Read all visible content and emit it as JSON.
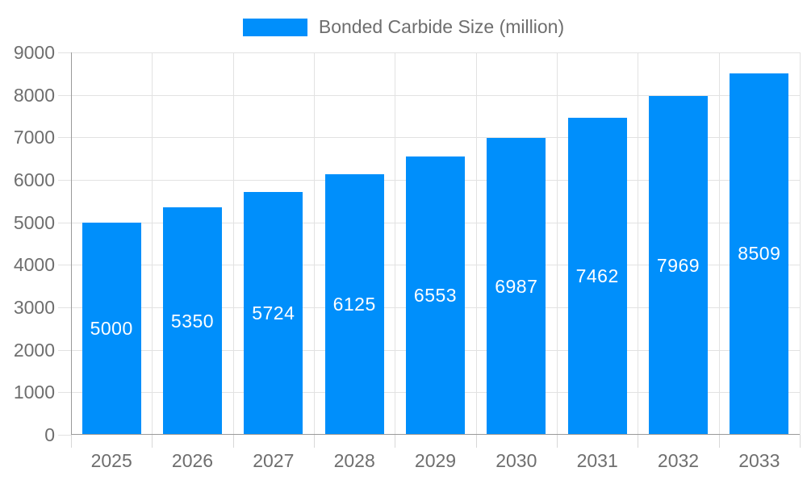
{
  "legend": {
    "label": "Bonded Carbide Size (million)"
  },
  "chart_data": {
    "type": "bar",
    "title": "Bonded Carbide Size (million)",
    "series": [
      {
        "name": "Bonded Carbide Size (million)",
        "values": [
          5000,
          5350,
          5724,
          6125,
          6553,
          6987,
          7462,
          7969,
          8509
        ]
      }
    ],
    "categories": [
      "2025",
      "2026",
      "2027",
      "2028",
      "2029",
      "2030",
      "2031",
      "2032",
      "2033"
    ],
    "value_labels": [
      "5000",
      "5350",
      "5724",
      "6125",
      "6553",
      "6987",
      "7462",
      "7969",
      "8509"
    ],
    "xlabel": "",
    "ylabel": "",
    "ylim": [
      0,
      9000
    ],
    "ytick_step": 1000,
    "ytick_labels": [
      "0",
      "1000",
      "2000",
      "3000",
      "4000",
      "5000",
      "6000",
      "7000",
      "8000",
      "9000"
    ],
    "grid": true,
    "legend_position": "top",
    "colors": {
      "bar": "#008FFB",
      "bar_label": "#ffffff",
      "axis_text": "#6e6e6e",
      "grid_line": "#e2e2e2",
      "axis_line": "#9a9a9a"
    }
  }
}
